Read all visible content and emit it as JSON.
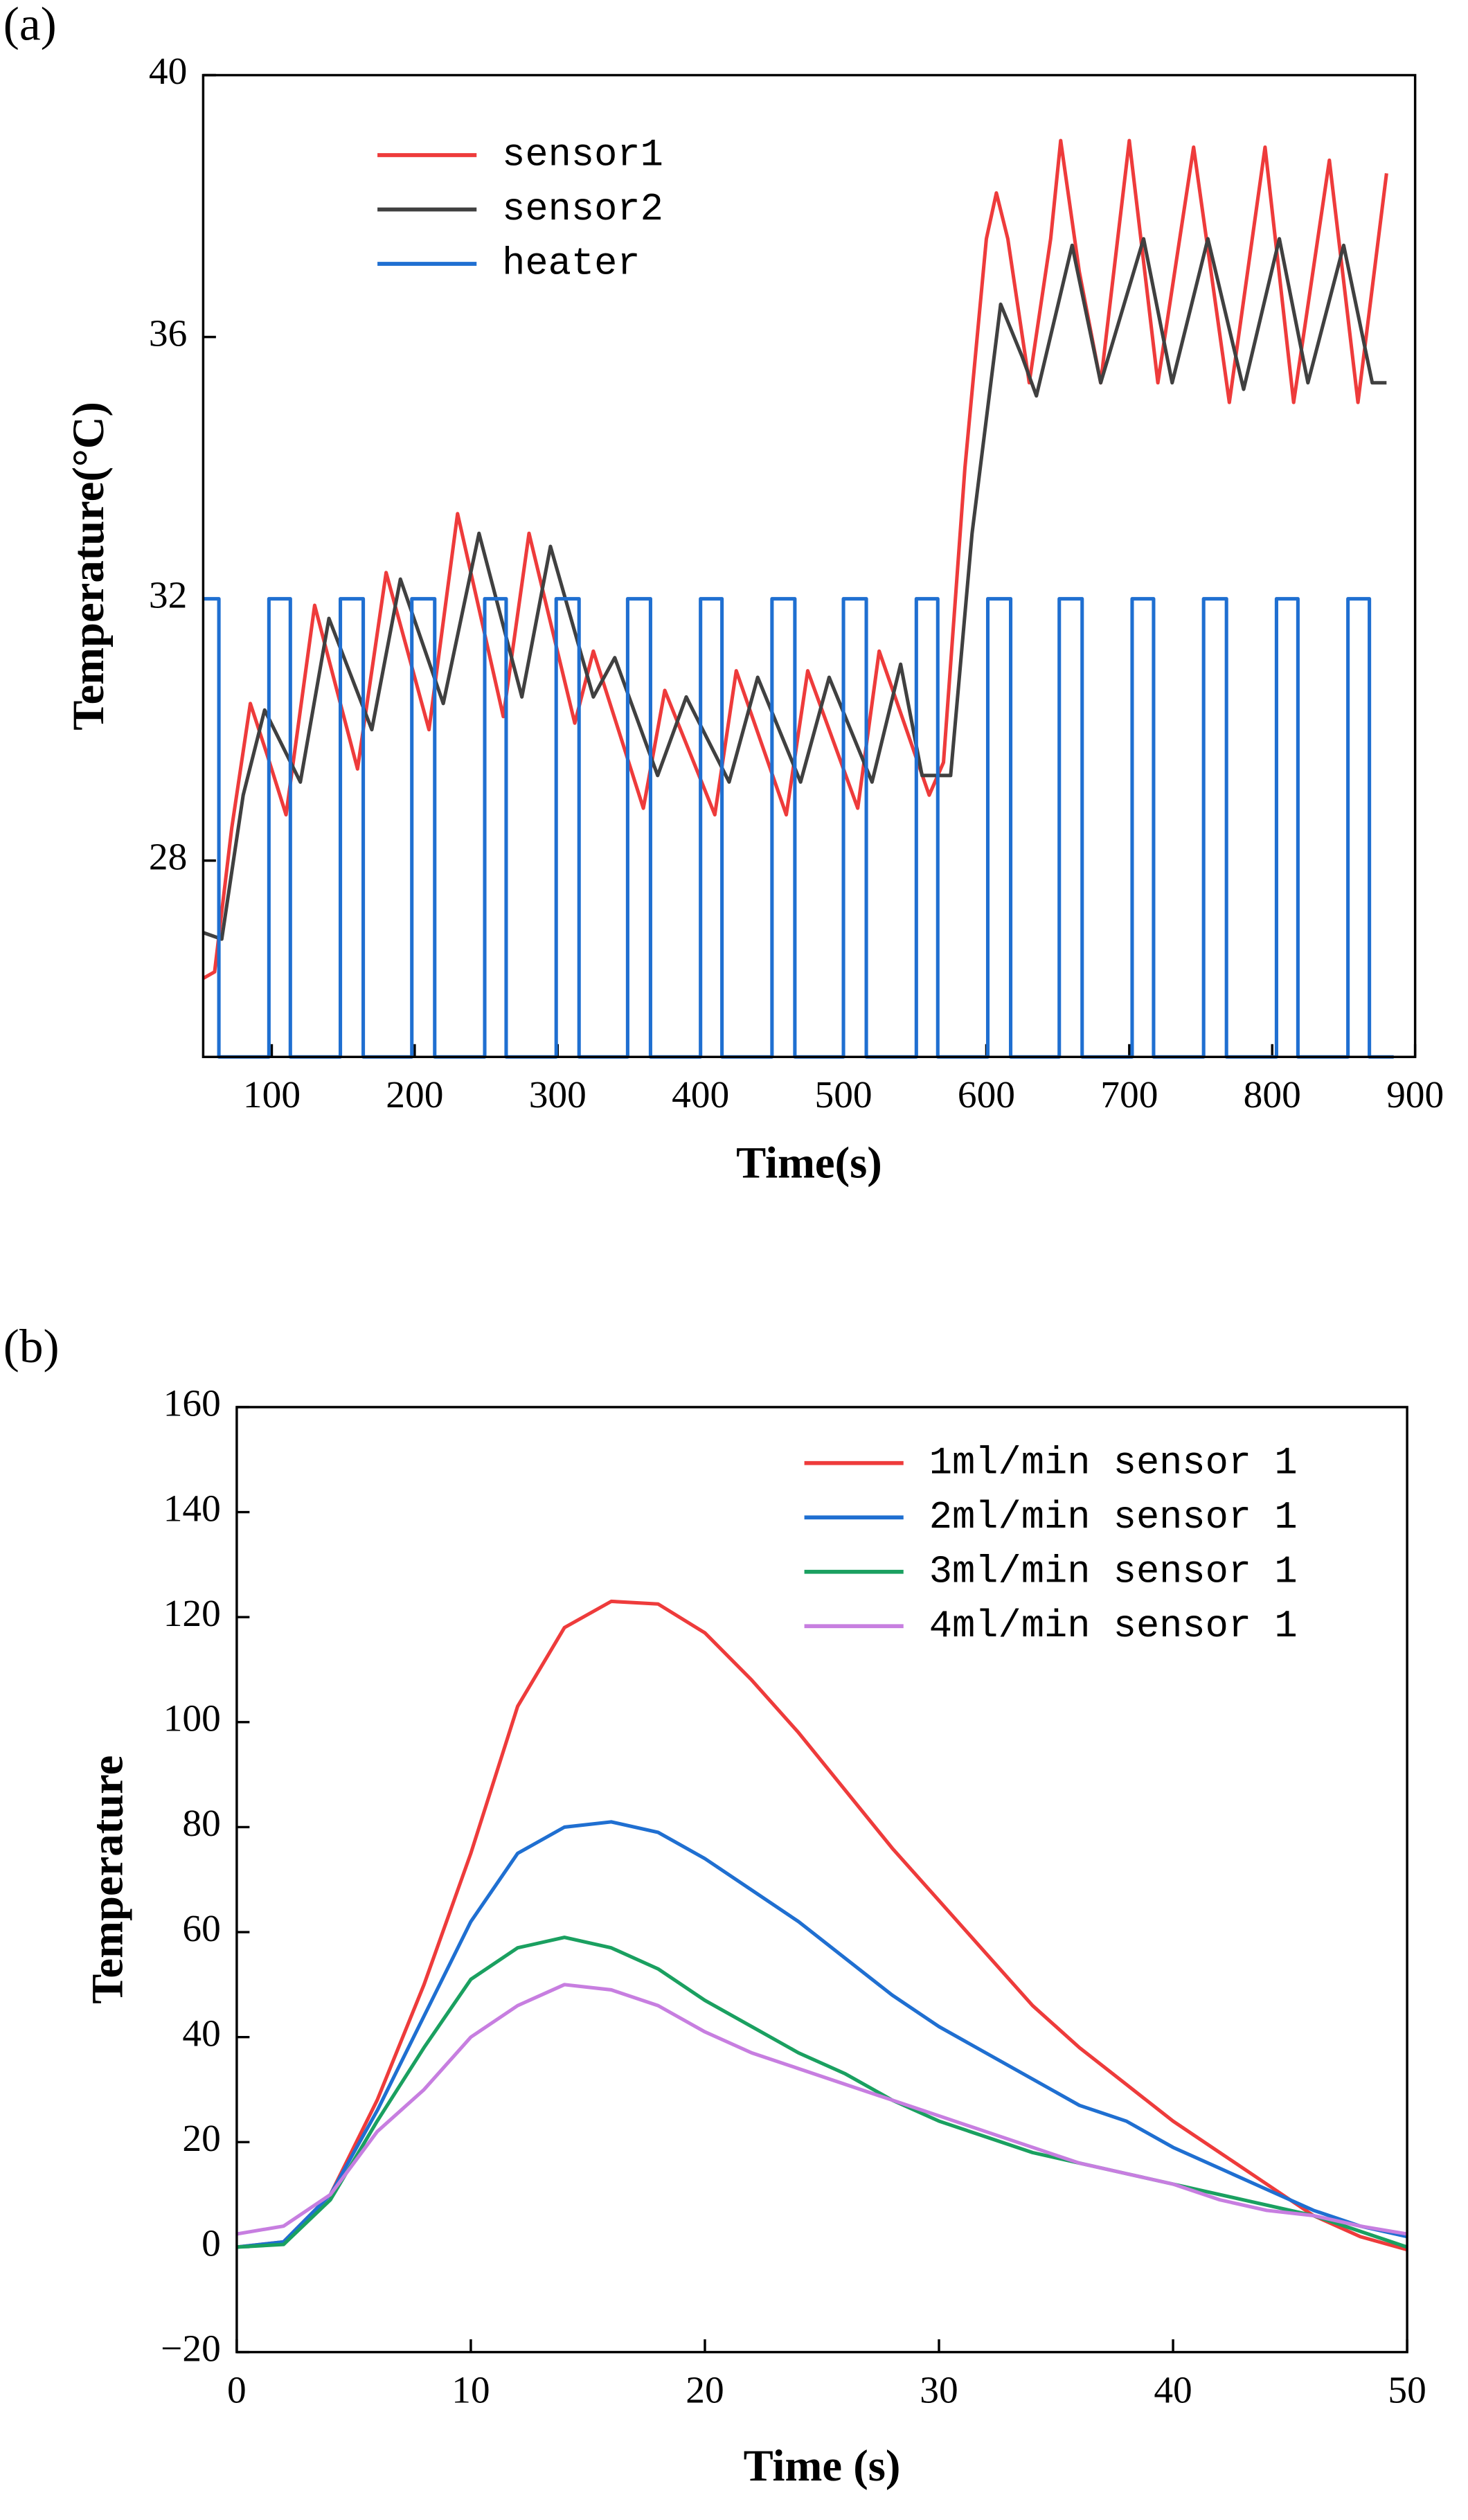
{
  "chart_data": [
    {
      "type": "line",
      "panel_label": "(a)",
      "x_label": "Time(s)",
      "y_label": "Temperature(°C)",
      "xlim": [
        52,
        900
      ],
      "ylim": [
        25,
        40
      ],
      "xticks": [
        100,
        200,
        300,
        400,
        500,
        600,
        700,
        800,
        900
      ],
      "yticks": [
        28,
        32,
        36,
        40
      ],
      "legend": "upper left",
      "series": [
        {
          "name": "sensor1",
          "color": "#ee3b3b",
          "x": [
            52,
            60,
            72,
            85,
            97,
            110,
            130,
            160,
            180,
            210,
            230,
            262,
            280,
            312,
            325,
            360,
            375,
            410,
            425,
            460,
            475,
            510,
            525,
            560,
            570,
            585,
            600,
            607,
            615,
            630,
            645,
            652,
            665,
            680,
            700,
            720,
            745,
            770,
            795,
            815,
            840,
            860,
            880
          ],
          "values": [
            26.2,
            26.3,
            28.5,
            30.4,
            29.6,
            28.7,
            31.9,
            29.4,
            32.4,
            30.0,
            33.3,
            30.2,
            33.0,
            30.1,
            31.2,
            28.8,
            30.6,
            28.7,
            30.9,
            28.7,
            30.9,
            28.8,
            31.2,
            29.0,
            29.5,
            34.0,
            37.5,
            38.2,
            37.5,
            35.3,
            37.5,
            39.0,
            37.0,
            35.3,
            39.0,
            35.3,
            38.9,
            35.0,
            38.9,
            35.0,
            38.7,
            35.0,
            38.5
          ]
        },
        {
          "name": "sensor2",
          "color": "#404040",
          "x": [
            52,
            65,
            80,
            95,
            120,
            140,
            170,
            190,
            220,
            245,
            275,
            295,
            325,
            340,
            370,
            390,
            420,
            440,
            470,
            490,
            520,
            540,
            555,
            575,
            590,
            610,
            625,
            635,
            660,
            680,
            710,
            730,
            755,
            780,
            805,
            825,
            850,
            870,
            880
          ],
          "values": [
            26.9,
            26.8,
            29.0,
            30.3,
            29.2,
            31.7,
            30.0,
            32.3,
            30.4,
            33.0,
            30.5,
            32.8,
            30.5,
            31.1,
            29.3,
            30.5,
            29.2,
            30.8,
            29.2,
            30.8,
            29.2,
            31.0,
            29.3,
            29.3,
            33.0,
            36.5,
            35.7,
            35.1,
            37.4,
            35.3,
            37.5,
            35.3,
            37.5,
            35.2,
            37.5,
            35.3,
            37.4,
            35.3,
            35.3
          ]
        },
        {
          "name": "heater",
          "color": "#1f6fd1",
          "x": [
            52,
            63,
            63,
            98,
            98,
            113,
            113,
            148,
            148,
            164,
            164,
            198,
            198,
            214,
            214,
            249,
            249,
            264,
            264,
            299,
            299,
            315,
            315,
            349,
            349,
            365,
            365,
            400,
            400,
            415,
            415,
            450,
            450,
            466,
            466,
            500,
            500,
            516,
            516,
            551,
            551,
            566,
            566,
            601,
            601,
            617,
            617,
            651,
            651,
            667,
            667,
            702,
            702,
            717,
            717,
            752,
            752,
            768,
            768,
            803,
            803,
            818,
            818,
            853,
            853,
            868,
            868,
            885
          ],
          "values": [
            32,
            32,
            25,
            25,
            32,
            32,
            25,
            25,
            32,
            32,
            25,
            25,
            32,
            32,
            25,
            25,
            32,
            32,
            25,
            25,
            32,
            32,
            25,
            25,
            32,
            32,
            25,
            25,
            32,
            32,
            25,
            25,
            32,
            32,
            25,
            25,
            32,
            32,
            25,
            25,
            32,
            32,
            25,
            25,
            32,
            32,
            25,
            25,
            32,
            32,
            25,
            25,
            32,
            32,
            25,
            25,
            32,
            32,
            25,
            25,
            32,
            32,
            25,
            25,
            32,
            32,
            25,
            25
          ]
        }
      ]
    },
    {
      "type": "line",
      "panel_label": "(b)",
      "x_label": "Time (s)",
      "y_label": "Temperature",
      "xlim": [
        0,
        50
      ],
      "ylim": [
        -20,
        160
      ],
      "xticks": [
        0,
        10,
        20,
        30,
        40,
        50
      ],
      "yticks": [
        {
          "value": -20,
          "label": "−20"
        },
        0,
        20,
        40,
        60,
        80,
        100,
        120,
        140,
        160
      ],
      "legend": "upper right",
      "series": [
        {
          "name": "1ml/min sensor 1",
          "color": "#ee3b3b",
          "x": [
            0,
            2,
            4,
            6,
            8,
            10,
            12,
            14,
            16,
            18,
            20,
            22,
            24,
            26,
            28,
            30,
            32,
            34,
            36,
            38,
            40,
            42,
            44,
            46,
            48,
            50
          ],
          "values": [
            0,
            1,
            10,
            28,
            50,
            75,
            103,
            118,
            123,
            122.5,
            117,
            108,
            98,
            87,
            76,
            66,
            56,
            46,
            38,
            31,
            24,
            18,
            12,
            6,
            2,
            -0.5
          ]
        },
        {
          "name": "2ml/min sensor 1",
          "color": "#1f6fd1",
          "x": [
            0,
            2,
            4,
            6,
            8,
            10,
            12,
            14,
            16,
            18,
            20,
            22,
            24,
            26,
            28,
            30,
            32,
            34,
            36,
            38,
            40,
            42,
            44,
            46,
            48,
            50
          ],
          "values": [
            0,
            1,
            10,
            26,
            44,
            62,
            75,
            80,
            81,
            79,
            74,
            68,
            62,
            55,
            48,
            42,
            37,
            32,
            27,
            24,
            19,
            15,
            11,
            7,
            4,
            2
          ]
        },
        {
          "name": "3ml/min sensor 1",
          "color": "#1aa060",
          "x": [
            0,
            2,
            4,
            6,
            8,
            10,
            12,
            14,
            16,
            18,
            20,
            22,
            24,
            26,
            28,
            30,
            32,
            34,
            36,
            38,
            40,
            42,
            44,
            46,
            48,
            50
          ],
          "values": [
            0,
            0.5,
            9,
            24,
            38,
            51,
            57,
            59,
            57,
            53,
            47,
            42,
            37,
            33,
            28,
            24,
            21,
            18,
            16,
            14,
            12,
            10,
            8,
            6,
            3,
            0
          ]
        },
        {
          "name": "4ml/min sensor 1",
          "color": "#c77ee0",
          "x": [
            0,
            2,
            4,
            6,
            8,
            10,
            12,
            14,
            16,
            18,
            20,
            22,
            24,
            26,
            28,
            30,
            32,
            34,
            36,
            38,
            40,
            42,
            44,
            46,
            48,
            50
          ],
          "values": [
            2.5,
            4,
            10,
            22,
            30,
            40,
            46,
            50,
            49,
            46,
            41,
            37,
            34,
            31,
            28,
            25,
            22,
            19,
            16,
            14,
            12,
            9,
            7,
            6,
            4,
            2.5
          ]
        }
      ]
    }
  ]
}
